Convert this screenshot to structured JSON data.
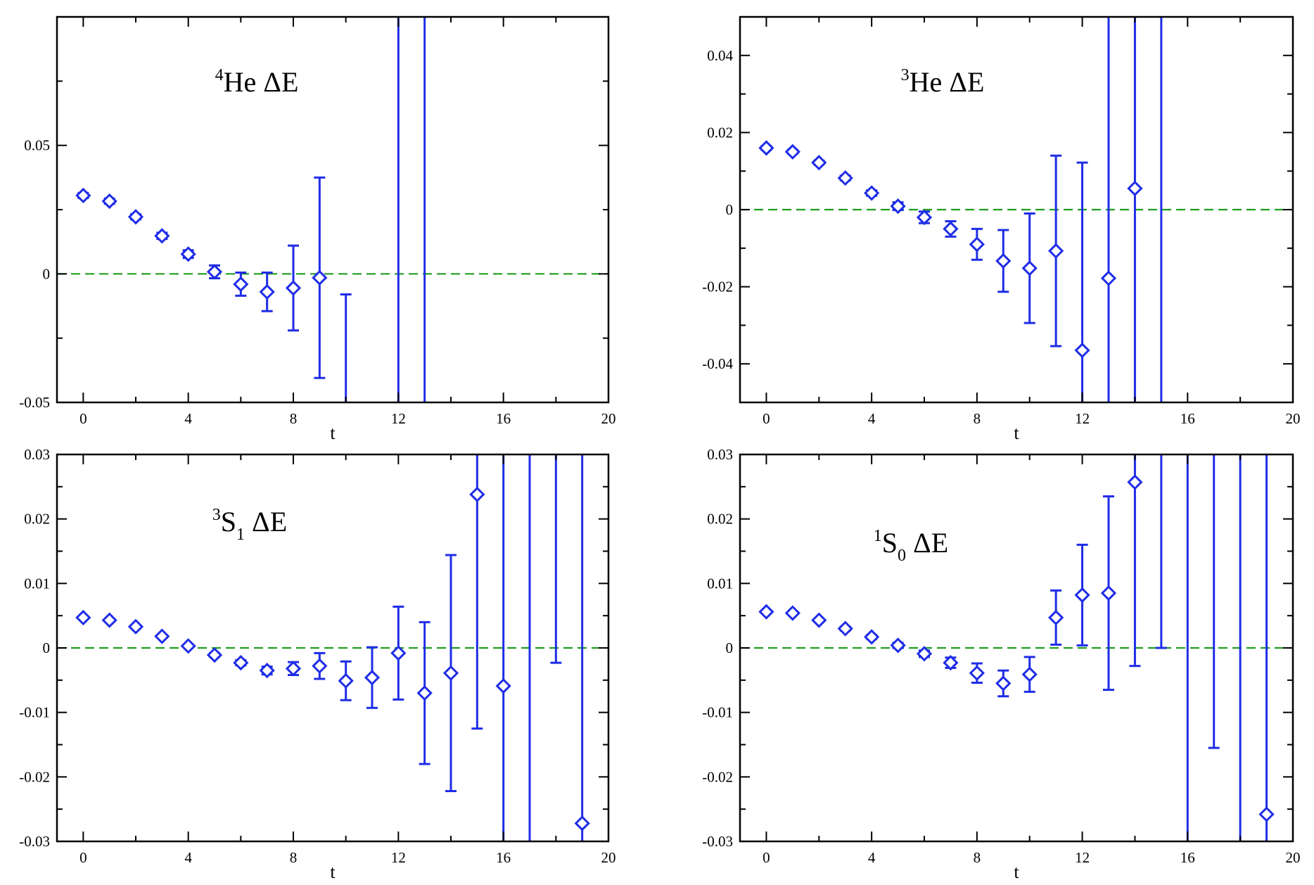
{
  "figure": {
    "layout": "2x2 grid"
  },
  "style": {
    "marker_color": "#1f2de6",
    "zero_line_color": "#1f9e1f",
    "axis_color": "#000000"
  },
  "chart_data": [
    {
      "type": "scatter",
      "title": "4He ΔE",
      "title_parts": {
        "sup": "4",
        "main": "He ΔE",
        "sub": ""
      },
      "xlabel": "t",
      "ylabel": "",
      "xlim": [
        -1,
        20
      ],
      "ylim": [
        -0.05,
        0.1
      ],
      "x_ticks": [
        0,
        4,
        8,
        12,
        16,
        20
      ],
      "y_ticks": [
        -0.05,
        0,
        0.05
      ],
      "y_tick_labels": [
        "-0.05",
        "0",
        "0.05"
      ],
      "reference_line": {
        "y": 0,
        "style": "dashed"
      },
      "series": [
        {
          "name": "4He ΔE",
          "marker": "diamond",
          "points": [
            {
              "x": 0,
              "y": 0.0305,
              "err": 0.001
            },
            {
              "x": 1,
              "y": 0.0283,
              "err": 0.001
            },
            {
              "x": 2,
              "y": 0.0222,
              "err": 0.001
            },
            {
              "x": 3,
              "y": 0.0148,
              "err": 0.0012
            },
            {
              "x": 4,
              "y": 0.0077,
              "err": 0.0015
            },
            {
              "x": 5,
              "y": 0.0008,
              "err": 0.0025
            },
            {
              "x": 6,
              "y": -0.004,
              "err": 0.0045
            },
            {
              "x": 7,
              "y": -0.007,
              "err": 0.0075
            },
            {
              "x": 8,
              "y": -0.0055,
              "err": 0.0165
            },
            {
              "x": 9,
              "y": -0.0015,
              "err": 0.039
            },
            {
              "x": 10,
              "y": null,
              "err_low": -0.06,
              "err_high": -0.008
            },
            {
              "x": 12,
              "y": null,
              "err_low": -0.06,
              "err_high": 0.11
            },
            {
              "x": 13,
              "y": null,
              "err_low": -0.06,
              "err_high": 0.11
            }
          ]
        }
      ]
    },
    {
      "type": "scatter",
      "title": "3He ΔE",
      "title_parts": {
        "sup": "3",
        "main": "He ΔE",
        "sub": ""
      },
      "xlabel": "t",
      "ylabel": "",
      "xlim": [
        -1,
        20
      ],
      "ylim": [
        -0.05,
        0.05
      ],
      "x_ticks": [
        0,
        4,
        8,
        12,
        16,
        20
      ],
      "y_ticks": [
        -0.04,
        -0.02,
        0,
        0.02,
        0.04
      ],
      "y_tick_labels": [
        "-0.04",
        "-0.02",
        "0",
        "0.02",
        "0.04"
      ],
      "reference_line": {
        "y": 0,
        "style": "dashed"
      },
      "series": [
        {
          "name": "3He ΔE",
          "marker": "diamond",
          "points": [
            {
              "x": 0,
              "y": 0.016,
              "err": 0.0005
            },
            {
              "x": 1,
              "y": 0.015,
              "err": 0.0005
            },
            {
              "x": 2,
              "y": 0.0122,
              "err": 0.0005
            },
            {
              "x": 3,
              "y": 0.0082,
              "err": 0.0006
            },
            {
              "x": 4,
              "y": 0.0043,
              "err": 0.0007
            },
            {
              "x": 5,
              "y": 0.0009,
              "err": 0.001
            },
            {
              "x": 6,
              "y": -0.002,
              "err": 0.0015
            },
            {
              "x": 7,
              "y": -0.005,
              "err": 0.002
            },
            {
              "x": 8,
              "y": -0.009,
              "err": 0.004
            },
            {
              "x": 9,
              "y": -0.0133,
              "err": 0.008
            },
            {
              "x": 10,
              "y": -0.0152,
              "err": 0.0142
            },
            {
              "x": 11,
              "y": -0.0107,
              "err": 0.0247
            },
            {
              "x": 12,
              "y": -0.0365,
              "err": 0.0487
            },
            {
              "x": 13,
              "y": -0.0178,
              "err_low": -0.06,
              "err_high": 0.06
            },
            {
              "x": 14,
              "y": 0.0055,
              "err_low": -0.06,
              "err_high": 0.06
            },
            {
              "x": 15,
              "y": null,
              "err_low": -0.06,
              "err_high": 0.06
            }
          ]
        }
      ]
    },
    {
      "type": "scatter",
      "title": "3S1 ΔE",
      "title_parts": {
        "sup": "3",
        "main": "S",
        "sub": "1",
        "tail": " ΔE"
      },
      "xlabel": "t",
      "ylabel": "",
      "xlim": [
        -1,
        20
      ],
      "ylim": [
        -0.03,
        0.03
      ],
      "x_ticks": [
        0,
        4,
        8,
        12,
        16,
        20
      ],
      "y_ticks": [
        -0.03,
        -0.02,
        -0.01,
        0,
        0.01,
        0.02,
        0.03
      ],
      "y_tick_labels": [
        "-0.03",
        "-0.02",
        "-0.01",
        "0",
        "0.01",
        "0.02",
        "0.03"
      ],
      "reference_line": {
        "y": 0,
        "style": "dashed"
      },
      "series": [
        {
          "name": "3S1 ΔE",
          "marker": "diamond",
          "points": [
            {
              "x": 0,
              "y": 0.0047,
              "err": 0.0002
            },
            {
              "x": 1,
              "y": 0.0043,
              "err": 0.0002
            },
            {
              "x": 2,
              "y": 0.0033,
              "err": 0.0002
            },
            {
              "x": 3,
              "y": 0.0018,
              "err": 0.0002
            },
            {
              "x": 4,
              "y": 0.0003,
              "err": 0.0002
            },
            {
              "x": 5,
              "y": -0.0011,
              "err": 0.0003
            },
            {
              "x": 6,
              "y": -0.0023,
              "err": 0.0004
            },
            {
              "x": 7,
              "y": -0.0035,
              "err": 0.0006
            },
            {
              "x": 8,
              "y": -0.0032,
              "err": 0.001
            },
            {
              "x": 9,
              "y": -0.0028,
              "err": 0.002
            },
            {
              "x": 10,
              "y": -0.0051,
              "err": 0.003
            },
            {
              "x": 11,
              "y": -0.0046,
              "err": 0.0047
            },
            {
              "x": 12,
              "y": -0.0008,
              "err": 0.0072
            },
            {
              "x": 13,
              "y": -0.007,
              "err": 0.011
            },
            {
              "x": 14,
              "y": -0.0039,
              "err": 0.0183
            },
            {
              "x": 15,
              "y": 0.0238,
              "err_low": -0.0125,
              "err_high": 0.04
            },
            {
              "x": 16,
              "y": -0.0059,
              "err_low": -0.04,
              "err_high": 0.04
            },
            {
              "x": 17,
              "y": null,
              "err_low": -0.04,
              "err_high": 0.04
            },
            {
              "x": 18,
              "y": null,
              "err_low": -0.0023,
              "err_high": 0.04
            },
            {
              "x": 19,
              "y": -0.0272,
              "err_low": -0.04,
              "err_high": 0.04
            }
          ]
        }
      ]
    },
    {
      "type": "scatter",
      "title": "1S0 ΔE",
      "title_parts": {
        "sup": "1",
        "main": "S",
        "sub": "0",
        "tail": " ΔE"
      },
      "xlabel": "t",
      "ylabel": "",
      "xlim": [
        -1,
        20
      ],
      "ylim": [
        -0.03,
        0.03
      ],
      "x_ticks": [
        0,
        4,
        8,
        12,
        16,
        20
      ],
      "y_ticks": [
        -0.03,
        -0.02,
        -0.01,
        0,
        0.01,
        0.02,
        0.03
      ],
      "y_tick_labels": [
        "-0.03",
        "-0.02",
        "-0.01",
        "0",
        "0.01",
        "0.02",
        "0.03"
      ],
      "reference_line": {
        "y": 0,
        "style": "dashed"
      },
      "series": [
        {
          "name": "1S0 ΔE",
          "marker": "diamond",
          "points": [
            {
              "x": 0,
              "y": 0.0056,
              "err": 0.0002
            },
            {
              "x": 1,
              "y": 0.0054,
              "err": 0.0002
            },
            {
              "x": 2,
              "y": 0.0043,
              "err": 0.0002
            },
            {
              "x": 3,
              "y": 0.003,
              "err": 0.0003
            },
            {
              "x": 4,
              "y": 0.0017,
              "err": 0.0003
            },
            {
              "x": 5,
              "y": 0.0004,
              "err": 0.0004
            },
            {
              "x": 6,
              "y": -0.0009,
              "err": 0.0005
            },
            {
              "x": 7,
              "y": -0.0023,
              "err": 0.0008
            },
            {
              "x": 8,
              "y": -0.0039,
              "err": 0.0015
            },
            {
              "x": 9,
              "y": -0.0055,
              "err": 0.002
            },
            {
              "x": 10,
              "y": -0.0041,
              "err": 0.0027
            },
            {
              "x": 11,
              "y": 0.0047,
              "err": 0.0042
            },
            {
              "x": 12,
              "y": 0.0082,
              "err": 0.0078
            },
            {
              "x": 13,
              "y": 0.0085,
              "err": 0.015
            },
            {
              "x": 14,
              "y": 0.0257,
              "err_low": -0.0028,
              "err_high": 0.04
            },
            {
              "x": 15,
              "y": null,
              "err_low": 0.0,
              "err_high": 0.04
            },
            {
              "x": 16,
              "y": null,
              "err_low": -0.04,
              "err_high": 0.04
            },
            {
              "x": 17,
              "y": null,
              "err_low": -0.0155,
              "err_high": 0.04
            },
            {
              "x": 18,
              "y": null,
              "err_low": -0.04,
              "err_high": 0.04
            },
            {
              "x": 19,
              "y": -0.0258,
              "err_low": -0.04,
              "err_high": 0.04
            }
          ]
        }
      ]
    }
  ]
}
